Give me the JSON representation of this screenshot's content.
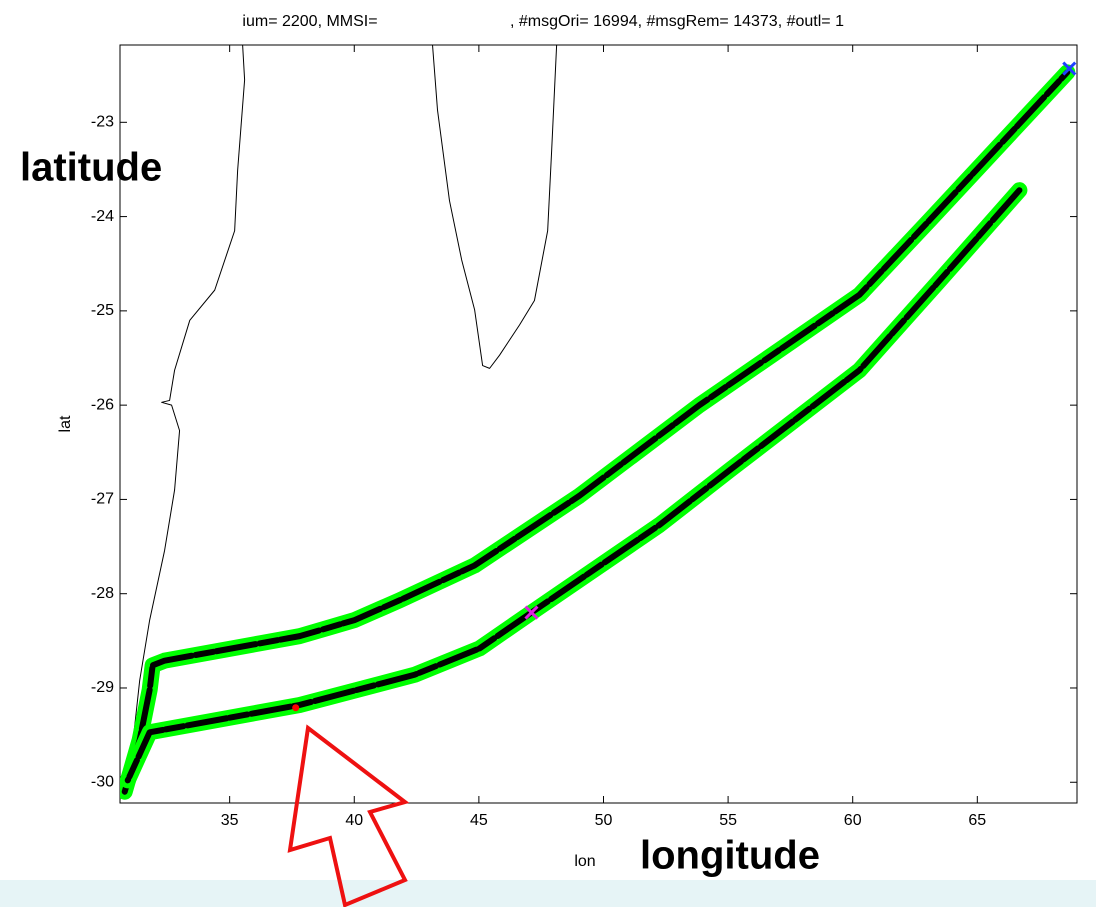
{
  "chart_data": {
    "type": "line",
    "title": [
      "ium= 2200, MMSI=",
      ", #msgOri= 16994, #msgRem= 14373, #outl= 1"
    ],
    "x_label": "lon",
    "y_label": "lat",
    "annotations": [
      "latitude",
      "longitude"
    ],
    "xlim": [
      30.6,
      69.0
    ],
    "xticks": [
      35,
      40,
      45,
      50,
      55,
      60,
      65
    ],
    "ylim": [
      -30.22,
      -22.18
    ],
    "yticks": [
      -23,
      -24,
      -25,
      -26,
      -27,
      -28,
      -29,
      -30
    ],
    "series": [
      {
        "color": "#000000",
        "style": "coast",
        "x": [
          35.52,
          35.6,
          35.32,
          35.2,
          34.4,
          33.4,
          32.79,
          32.59,
          32.27,
          32.67,
          32.99,
          32.79,
          32.39,
          31.79,
          31.39,
          30.91
        ],
        "values": [
          -22.18,
          -22.55,
          -23.51,
          -24.15,
          -24.78,
          -25.1,
          -25.63,
          -25.95,
          -25.97,
          -26.0,
          -26.27,
          -26.9,
          -27.54,
          -28.28,
          -28.92,
          -30.08
        ]
      },
      {
        "color": "#000000",
        "style": "coast",
        "x": [
          43.14,
          43.34,
          43.82,
          44.31,
          44.83,
          45.15,
          45.43,
          45.83,
          46.63,
          47.23,
          47.76,
          47.92,
          48.12
        ],
        "values": [
          -22.18,
          -22.87,
          -23.83,
          -24.46,
          -24.99,
          -25.58,
          -25.61,
          -25.47,
          -25.15,
          -24.89,
          -24.15,
          -23.3,
          -22.18
        ]
      },
      {
        "color": "#00ff00",
        "style": "track",
        "x": [
          30.79,
          31.39,
          31.79,
          31.91,
          32.39,
          37.81,
          40.01,
          41.82,
          44.83,
          49.04,
          53.85,
          60.27,
          63.08,
          68.61
        ],
        "values": [
          -30.1,
          -29.55,
          -29.02,
          -28.76,
          -28.71,
          -28.45,
          -28.28,
          -28.07,
          -27.7,
          -26.96,
          -26.0,
          -24.83,
          -24.04,
          -22.47
        ]
      },
      {
        "color": "#00ff00",
        "style": "track",
        "x": [
          66.69,
          63.48,
          60.27,
          55.06,
          52.25,
          47.11,
          45.03,
          42.42,
          37.81,
          31.79,
          30.91
        ],
        "values": [
          -23.72,
          -24.68,
          -25.63,
          -26.69,
          -27.27,
          -28.2,
          -28.58,
          -28.86,
          -29.18,
          -29.47,
          -29.98
        ]
      },
      {
        "color": "#2040ff",
        "marker": "x",
        "x": [
          68.69
        ],
        "values": [
          -22.43
        ]
      },
      {
        "color": "#e020e0",
        "marker": "x",
        "x": [
          47.11
        ],
        "values": [
          -28.2
        ]
      },
      {
        "color": "#ff0000",
        "marker": "dot",
        "x": [
          37.65
        ],
        "values": [
          -29.21
        ]
      }
    ]
  }
}
